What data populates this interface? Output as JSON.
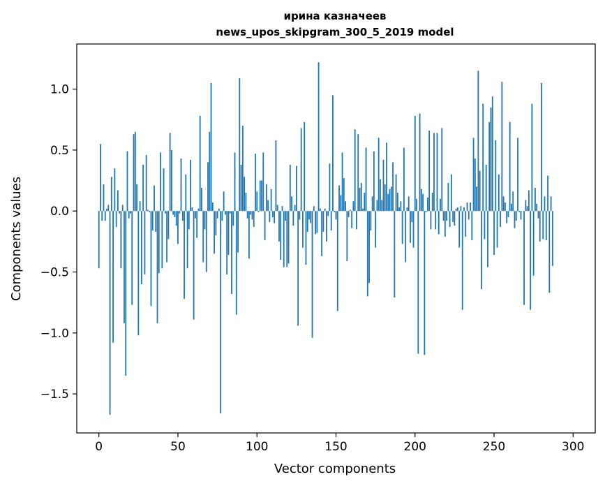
{
  "chart_data": {
    "type": "bar",
    "title": "ирина казначеев",
    "subtitle": "news_upos_skipgram_300_5_2019 model",
    "xlabel": "Vector components",
    "ylabel": "Components values",
    "xlim": [
      -14,
      314
    ],
    "ylim": [
      -1.82,
      1.37
    ],
    "xticks": [
      0,
      50,
      100,
      150,
      200,
      250,
      300
    ],
    "yticks": [
      -1.5,
      -1.0,
      -0.5,
      0.0,
      0.5,
      1.0
    ],
    "ytick_labels": [
      "−1.5",
      "−1.0",
      "−0.5",
      "0.0",
      "0.5",
      "1.0"
    ],
    "grid": false,
    "bar_color": "#1f77b4",
    "x_start": 0,
    "values": [
      -0.47,
      0.55,
      -0.08,
      0.22,
      -0.08,
      0.02,
      0.05,
      -1.67,
      0.28,
      -1.08,
      0.35,
      -0.13,
      0.17,
      -0.02,
      -0.47,
      0.05,
      -0.92,
      -1.35,
      0.49,
      -0.06,
      -0.02,
      -0.77,
      0.63,
      0.65,
      0.22,
      -1.02,
      0.08,
      -0.6,
      0.38,
      -0.52,
      0.46,
      0.01,
      -0.01,
      -0.78,
      -0.16,
      0.21,
      -0.17,
      -0.92,
      -0.51,
      0.48,
      -0.47,
      0.35,
      -0.02,
      -0.42,
      -0.23,
      0.64,
      0.5,
      -0.03,
      -0.05,
      -0.12,
      -0.27,
      -0.02,
      0.43,
      -0.08,
      -0.72,
      0.3,
      -0.47,
      -0.15,
      0.42,
      0.03,
      -0.89,
      -0.06,
      -0.22,
      0.02,
      0.78,
      0.19,
      -0.42,
      -0.15,
      -0.5,
      0.4,
      0.65,
      1.05,
      0.07,
      -0.35,
      -0.2,
      -0.06,
      0.02,
      -1.66,
      -0.08,
      0.16,
      -0.03,
      -0.52,
      -0.36,
      -0.02,
      -0.68,
      -0.12,
      0.48,
      -0.85,
      -0.34,
      1.09,
      0.38,
      0.7,
      0.28,
      0.15,
      -0.06,
      -0.39,
      -0.03,
      -0.07,
      -0.13,
      0.47,
      0.16,
      -0.01,
      0.25,
      0.25,
      0.48,
      -0.24,
      0.22,
      0.09,
      -0.09,
      0.18,
      -0.05,
      -0.1,
      0.58,
      0.05,
      -0.25,
      -0.4,
      0.04,
      -0.46,
      -0.08,
      -0.46,
      -0.43,
      0.38,
      0.12,
      -0.12,
      0.05,
      0.37,
      -0.94,
      -0.07,
      0.68,
      -0.3,
      0.73,
      -0.44,
      -0.17,
      -0.07,
      -0.1,
      -1.04,
      0.04,
      -0.19,
      -0.18,
      1.22,
      0.02,
      -0.37,
      -0.17,
      0.02,
      -0.25,
      -0.04,
      0.39,
      -0.16,
      0.95,
      -0.01,
      -0.07,
      -0.82,
      0.21,
      0.13,
      0.48,
      0.27,
      0.08,
      -0.41,
      -0.05,
      0.01,
      -0.14,
      0.08,
      0.67,
      -0.15,
      0.63,
      0.19,
      0.23,
      0.02,
      0.15,
      0.52,
      -0.7,
      -0.59,
      -0.16,
      0.12,
      0.49,
      -0.3,
      0.09,
      0.6,
      0.26,
      0.09,
      0.42,
      0.22,
      0.56,
      0.14,
      0.18,
      0.2,
      0.4,
      -0.71,
      0.3,
      0.15,
      0.03,
      0.08,
      -0.27,
      0.52,
      -0.42,
      0.03,
      0.12,
      -0.26,
      -0.09,
      -0.3,
      0.78,
      0.1,
      -1.17,
      0.8,
      0.18,
      0.14,
      -1.18,
      -0.01,
      0.11,
      0.66,
      -0.15,
      0.15,
      0.64,
      -0.15,
      0.64,
      -0.19,
      0.1,
      0.68,
      -0.08,
      -0.21,
      -0.08,
      0.23,
      -0.13,
      0.3,
      -0.09,
      -0.12,
      0.02,
      0.03,
      -0.3,
      0.04,
      -0.81,
      0.03,
      -0.21,
      0.07,
      -0.07,
      0.07,
      -0.24,
      0.6,
      0.43,
      0.2,
      1.15,
      0.33,
      -0.64,
      0.88,
      -0.23,
      0.38,
      -0.46,
      0.73,
      0.85,
      0.94,
      -0.36,
      0.58,
      -0.3,
      0.3,
      -0.13,
      1.06,
      0.12,
      0.07,
      -0.1,
      -0.05,
      0.73,
      0.06,
      0.16,
      -0.14,
      -0.08,
      0.6,
      -0.01,
      -0.07,
      0.0,
      -0.77,
      0.09,
      0.04,
      0.17,
      -0.81,
      0.88,
      -0.53,
      0.19,
      0.06,
      -0.06,
      -0.25,
      1.05,
      -0.23,
      0.12,
      -0.24,
      0.29,
      -0.67,
      0.12,
      -0.45
    ]
  }
}
